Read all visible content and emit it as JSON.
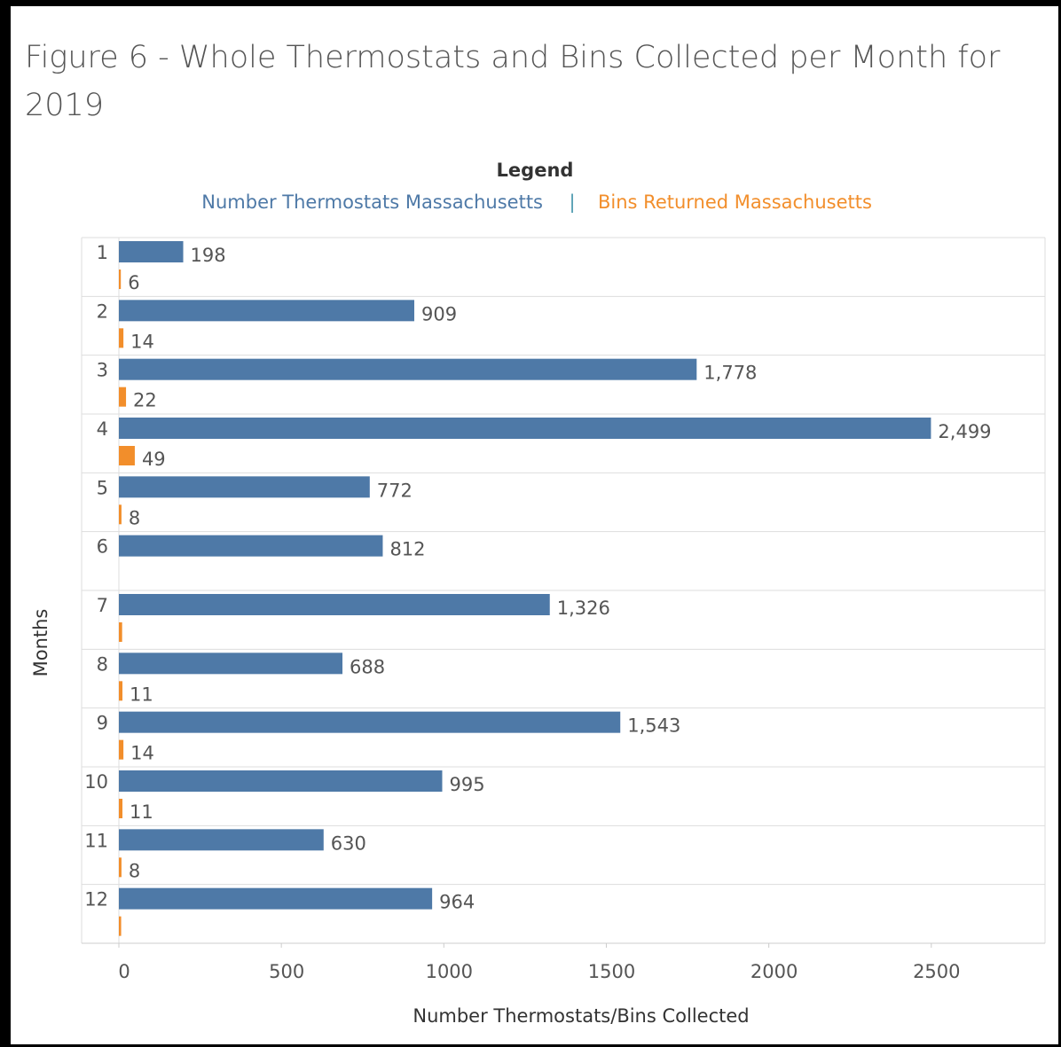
{
  "chart_data": {
    "type": "hbar",
    "title": "Figure 6 - Whole Thermostats and Bins Collected per Month for 2019",
    "legend_title": "Legend",
    "x_label": "Number Thermostats/Bins Collected",
    "y_label": "Months",
    "categories": [
      "1",
      "2",
      "3",
      "4",
      "5",
      "6",
      "7",
      "8",
      "9",
      "10",
      "11",
      "12"
    ],
    "series": [
      {
        "name": "Number Thermostats Massachusetts",
        "color": "#4e79a7",
        "values": [
          198,
          909,
          1778,
          2499,
          772,
          812,
          1326,
          688,
          1543,
          995,
          630,
          964
        ],
        "value_labels": [
          "198",
          "909",
          "1,778",
          "2,499",
          "772",
          "812",
          "1,326",
          "688",
          "1,543",
          "995",
          "630",
          "964"
        ]
      },
      {
        "name": "Bins Returned Massachusetts",
        "color": "#f28e2b",
        "values": [
          6,
          14,
          22,
          49,
          8,
          null,
          10,
          11,
          14,
          11,
          8,
          7
        ],
        "value_labels": [
          "6",
          "14",
          "22",
          "49",
          "8",
          null,
          null,
          "11",
          "14",
          "11",
          "8",
          null
        ]
      }
    ],
    "xlim": [
      0,
      2850
    ],
    "xticks": [
      0,
      500,
      1000,
      1500,
      2000,
      2500
    ],
    "grid": true
  }
}
